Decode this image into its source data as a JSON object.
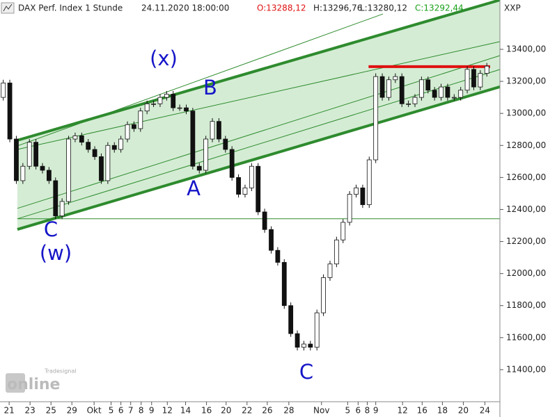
{
  "chart_data": {
    "type": "candlestick",
    "title": "DAX Perf. Index 1 Stunde",
    "timestamp": "24.11.2020 18:00:00",
    "quote": {
      "open": "O:13288,12",
      "high": "H:13296,76",
      "low": "L:13280,12",
      "close": "C:13292,44"
    },
    "symbol": "XXP",
    "logo": {
      "brand": "Tradesignal",
      "name": "online"
    },
    "up_color": "#ffffff",
    "down_color": "#111111",
    "open": [
      13100,
      13190,
      12840,
      12580,
      12670,
      12820,
      12670,
      12645,
      12580,
      12360,
      12450,
      12840,
      12860,
      12820,
      12775,
      12730,
      12580,
      12800,
      12775,
      12840,
      12930,
      12905,
      13015,
      13060,
      13060,
      13100,
      13120,
      13035,
      13035,
      13015,
      12670,
      12645,
      12840,
      12950,
      12840,
      12775,
      12600,
      12495,
      12535,
      12670,
      12385,
      12275,
      12145,
      12070,
      11800,
      11625,
      11540,
      11560,
      11540,
      11755,
      11975,
      12060,
      12210,
      12320,
      12495,
      12535,
      12430,
      12710,
      13230,
      13100,
      13210,
      13230,
      13060,
      13060,
      13100,
      13210,
      13145,
      13100,
      13165,
      13100,
      13100,
      13145,
      13275,
      13165,
      13250
    ],
    "high": [
      13210,
      13210,
      12860,
      12690,
      12840,
      12840,
      12690,
      12665,
      12600,
      12470,
      12860,
      12880,
      12880,
      12840,
      12795,
      12750,
      12820,
      12820,
      12860,
      12950,
      12950,
      13035,
      13080,
      13080,
      13120,
      13140,
      13140,
      13055,
      13055,
      13035,
      12690,
      12860,
      12970,
      12970,
      12860,
      12795,
      12620,
      12555,
      12690,
      12690,
      12405,
      12295,
      12165,
      12090,
      11820,
      11645,
      11580,
      11580,
      11775,
      11995,
      12080,
      12230,
      12340,
      12515,
      12555,
      12555,
      12730,
      13250,
      13250,
      13230,
      13250,
      13250,
      13080,
      13120,
      13230,
      13230,
      13165,
      13185,
      13185,
      13120,
      13165,
      13295,
      13295,
      13270,
      13315
    ],
    "low": [
      13080,
      12820,
      12560,
      12560,
      12650,
      12650,
      12625,
      12560,
      12340,
      12340,
      12430,
      12820,
      12800,
      12755,
      12710,
      12560,
      12560,
      12755,
      12755,
      12820,
      12885,
      12885,
      12995,
      13040,
      13040,
      13080,
      13015,
      13015,
      12995,
      12650,
      12625,
      12625,
      12820,
      12820,
      12755,
      12580,
      12475,
      12475,
      12515,
      12365,
      12255,
      12125,
      12050,
      11780,
      11605,
      11520,
      11520,
      11520,
      11520,
      11735,
      11955,
      12040,
      12190,
      12300,
      12475,
      12410,
      12410,
      12690,
      13080,
      13080,
      13190,
      13040,
      13040,
      13040,
      13080,
      13125,
      13080,
      13080,
      13080,
      13080,
      13080,
      13125,
      13145,
      13145,
      13230
    ],
    "close": [
      13190,
      12840,
      12580,
      12670,
      12820,
      12670,
      12645,
      12580,
      12360,
      12450,
      12840,
      12860,
      12820,
      12775,
      12730,
      12580,
      12800,
      12775,
      12840,
      12930,
      12905,
      13015,
      13060,
      13060,
      13100,
      13120,
      13035,
      13035,
      13015,
      12670,
      12645,
      12840,
      12950,
      12840,
      12775,
      12600,
      12495,
      12535,
      12670,
      12385,
      12275,
      12145,
      12070,
      11800,
      11625,
      11540,
      11560,
      11540,
      11755,
      11975,
      12060,
      12210,
      12320,
      12495,
      12535,
      12430,
      12710,
      13230,
      13100,
      13210,
      13230,
      13060,
      13060,
      13100,
      13210,
      13145,
      13100,
      13165,
      13100,
      13100,
      13145,
      13275,
      13165,
      13250,
      13295
    ],
    "xlim": [
      0,
      76.5
    ],
    "xticks": [
      {
        "value": 1.4,
        "label": "21"
      },
      {
        "value": 4.6,
        "label": "23"
      },
      {
        "value": 7.8,
        "label": "25"
      },
      {
        "value": 11.0,
        "label": "29"
      },
      {
        "value": 14.4,
        "label": "Okt"
      },
      {
        "value": 17.0,
        "label": "5"
      },
      {
        "value": 18.5,
        "label": "6"
      },
      {
        "value": 20.0,
        "label": "7"
      },
      {
        "value": 21.6,
        "label": "8"
      },
      {
        "value": 23.2,
        "label": "9"
      },
      {
        "value": 25.6,
        "label": "12"
      },
      {
        "value": 28.4,
        "label": "14"
      },
      {
        "value": 31.6,
        "label": "16"
      },
      {
        "value": 34.6,
        "label": "20"
      },
      {
        "value": 37.8,
        "label": "22"
      },
      {
        "value": 40.9,
        "label": "26"
      },
      {
        "value": 44.2,
        "label": "28"
      },
      {
        "value": 49.2,
        "label": "Nov"
      },
      {
        "value": 53.2,
        "label": "5"
      },
      {
        "value": 54.8,
        "label": "6"
      },
      {
        "value": 56.2,
        "label": "8"
      },
      {
        "value": 57.5,
        "label": "9"
      },
      {
        "value": 61.6,
        "label": "12"
      },
      {
        "value": 64.6,
        "label": "16"
      },
      {
        "value": 67.7,
        "label": "18"
      },
      {
        "value": 70.9,
        "label": "20"
      },
      {
        "value": 74.2,
        "label": "24"
      }
    ],
    "ylim": [
      11200,
      13708
    ],
    "yticks": [
      {
        "value": 11400,
        "label": "11400,00"
      },
      {
        "value": 11600,
        "label": "11600,00"
      },
      {
        "value": 11800,
        "label": "11800,00"
      },
      {
        "value": 12000,
        "label": "12000,00"
      },
      {
        "value": 12200,
        "label": "12200,00"
      },
      {
        "value": 12400,
        "label": "12400,00"
      },
      {
        "value": 12600,
        "label": "12600,00"
      },
      {
        "value": 12800,
        "label": "12800,00"
      },
      {
        "value": 13000,
        "label": "13000,00"
      },
      {
        "value": 13200,
        "label": "13200,00"
      },
      {
        "value": 13400,
        "label": "13400,00"
      }
    ],
    "channel_color": "#d4ecd4",
    "trendlines": [
      {
        "x": [
          2.66,
          76.5
        ],
        "y": [
          12832,
          13708
        ],
        "color": "#2e8b2e",
        "style": "thick"
      },
      {
        "x": [
          2.66,
          76.5
        ],
        "y": [
          12276,
          13166
        ],
        "color": "#2e8b2e",
        "style": "thick"
      },
      {
        "x": [
          2.66,
          58.6
        ],
        "y": [
          12797,
          13621
        ],
        "color": "#2e8b2e",
        "style": "thin"
      },
      {
        "x": [
          2.66,
          76.5
        ],
        "y": [
          12775,
          13448
        ],
        "color": "#2e8b2e",
        "style": "thin"
      },
      {
        "x": [
          2.66,
          76.5
        ],
        "y": [
          12407,
          13361
        ],
        "color": "#2e8b2e",
        "style": "thin"
      },
      {
        "x": [
          2.66,
          76.5
        ],
        "y": [
          12342,
          13274
        ],
        "color": "#2e8b2e",
        "style": "thin"
      },
      {
        "x": [
          2.66,
          76.5
        ],
        "y": [
          12342,
          12342
        ],
        "color": "#2e8b2e",
        "style": "thin"
      },
      {
        "x": [
          56.4,
          75
        ],
        "y": [
          13292,
          13292
        ],
        "color": "#e01010",
        "style": "thick"
      }
    ],
    "annotations": [
      "(x)",
      "B",
      "A",
      "C",
      "(w)",
      "C"
    ]
  }
}
